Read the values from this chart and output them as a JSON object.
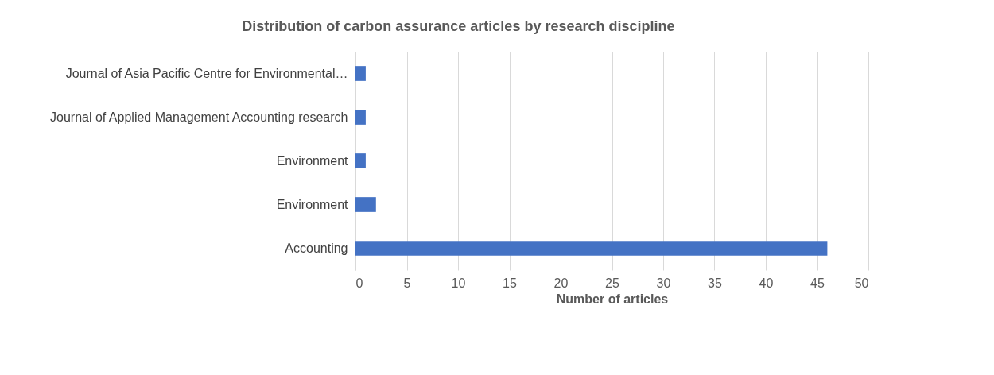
{
  "chart_data": {
    "type": "bar",
    "orientation": "horizontal",
    "title": "Distribution of carbon assurance articles by research discipline",
    "xlabel": "Number of articles",
    "categories": [
      "Journal of Asia Pacific Centre for Environmental…",
      "Journal of Applied Management Accounting research",
      "Environment",
      "Environment",
      "Accounting"
    ],
    "values": [
      1,
      1,
      1,
      2,
      46
    ],
    "color": "#4472c4",
    "xlim": [
      0,
      50
    ],
    "xticks": [
      0,
      5,
      10,
      15,
      20,
      25,
      30,
      35,
      40,
      45,
      50
    ],
    "grid": "x"
  }
}
